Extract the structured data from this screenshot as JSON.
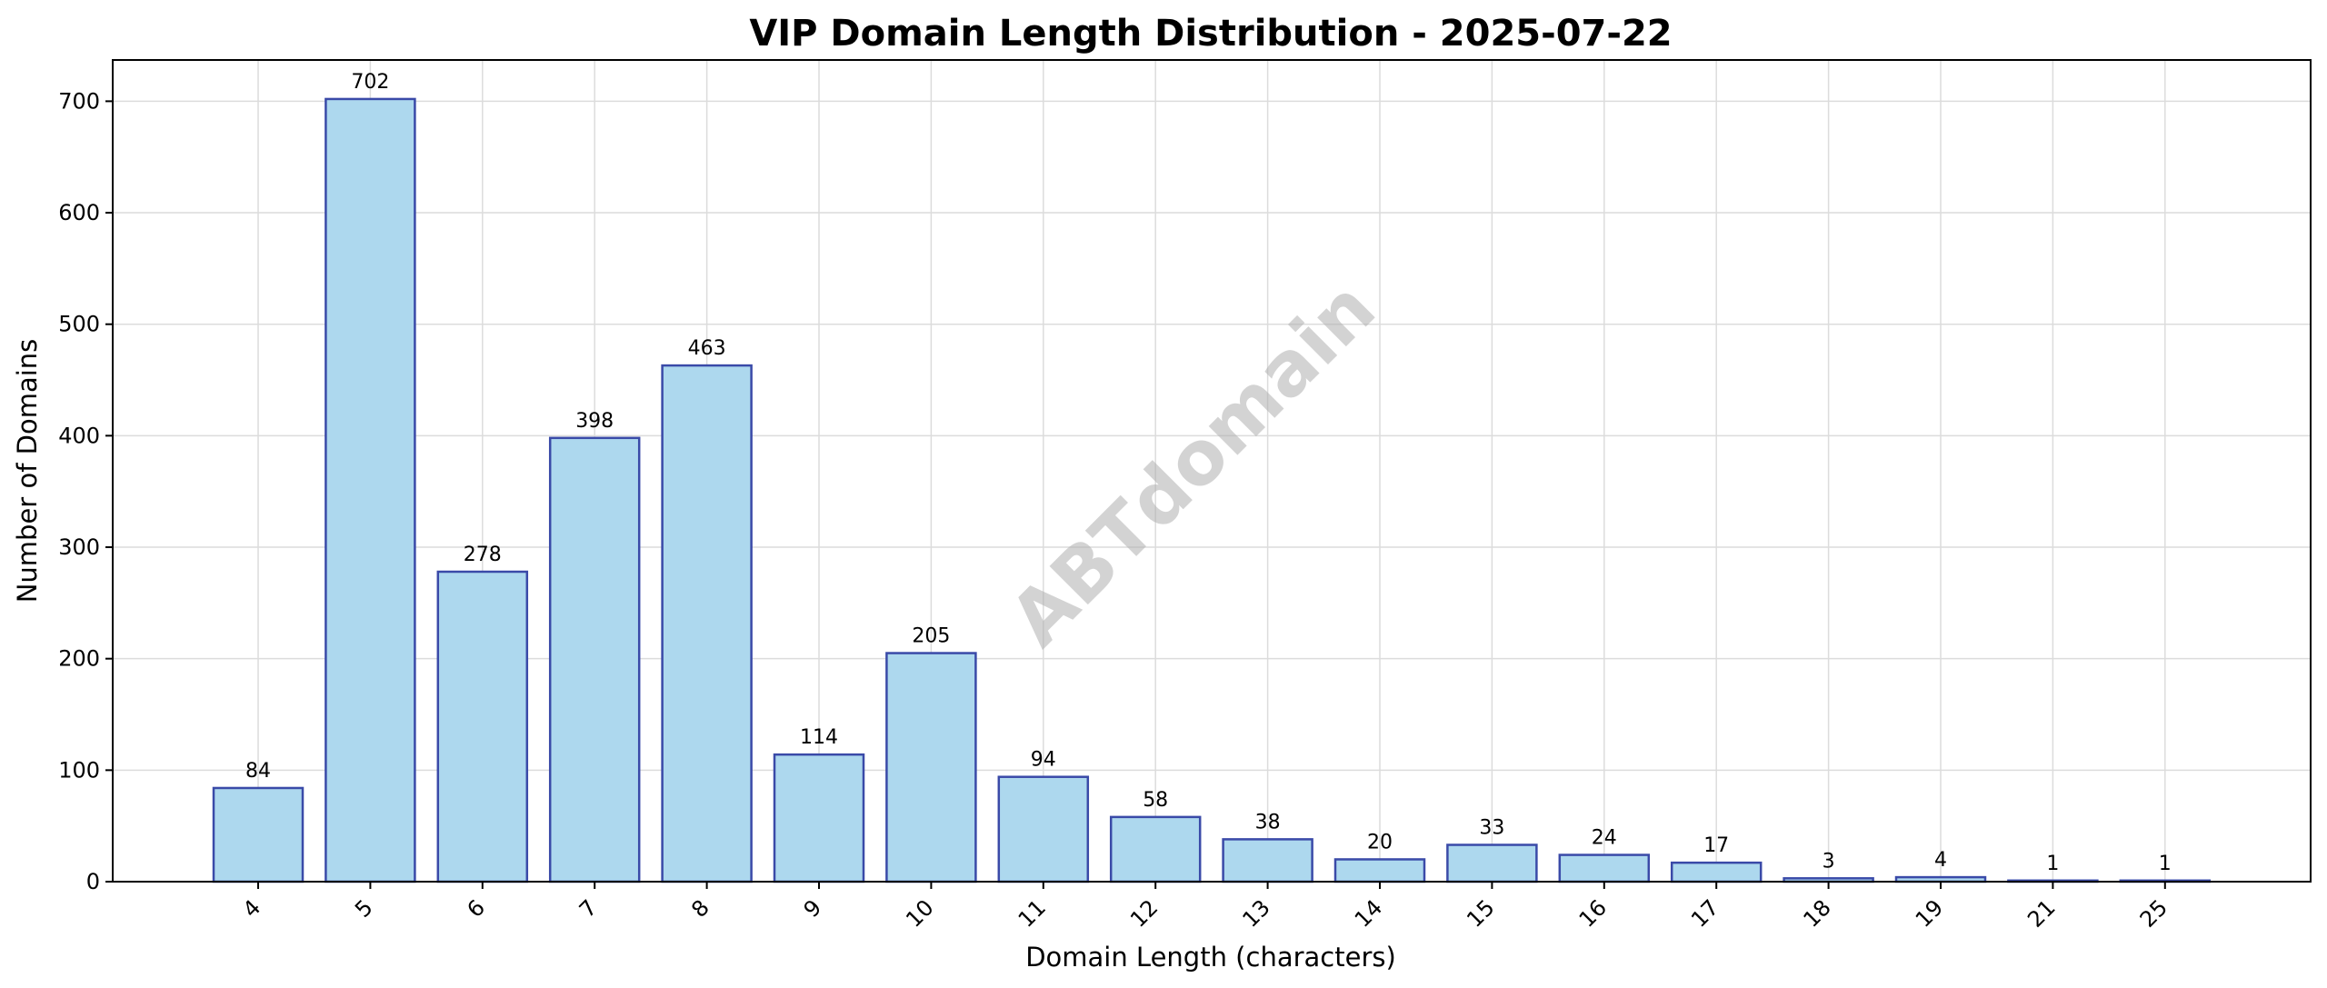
{
  "chart_data": {
    "type": "bar",
    "title": "VIP Domain Length Distribution - 2025-07-22",
    "xlabel": "Domain Length (characters)",
    "ylabel": "Number of Domains",
    "categories": [
      "4",
      "5",
      "6",
      "7",
      "8",
      "9",
      "10",
      "11",
      "12",
      "13",
      "14",
      "15",
      "16",
      "17",
      "18",
      "19",
      "21",
      "25"
    ],
    "values": [
      84,
      702,
      278,
      398,
      463,
      114,
      205,
      94,
      58,
      38,
      20,
      33,
      24,
      17,
      3,
      4,
      1,
      1
    ],
    "ylim": [
      0,
      737
    ],
    "yticks": [
      0,
      100,
      200,
      300,
      400,
      500,
      600,
      700
    ],
    "grid": true,
    "bar_color": "#add8ee",
    "bar_edge_color": "#3a4aa8",
    "data_labels": true,
    "x_tick_rotation": 45
  },
  "watermark": "ABTdomain"
}
